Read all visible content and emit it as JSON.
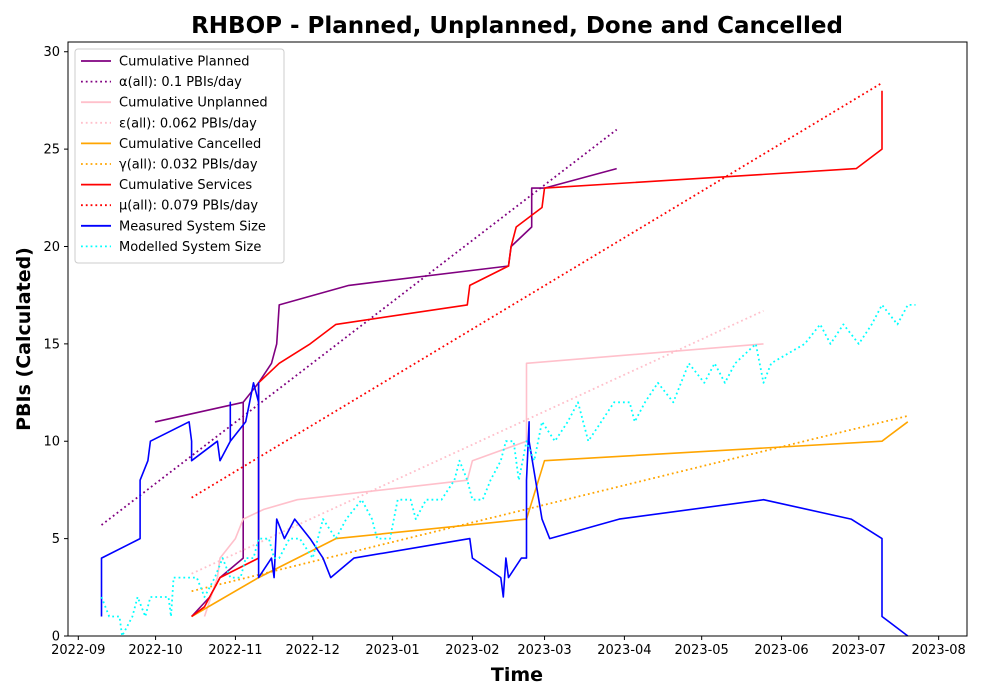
{
  "chart_data": {
    "type": "line",
    "title": "RHBOP - Planned, Unplanned, Done  and Cancelled",
    "xlabel": "Time",
    "ylabel": "PBIs (Calculated)",
    "x_axis_type": "date",
    "xlim": [
      "2022-08-28",
      "2023-08-12"
    ],
    "ylim": [
      0,
      30.5
    ],
    "x_ticks": [
      "2022-09",
      "2022-10",
      "2022-11",
      "2022-12",
      "2023-01",
      "2023-02",
      "2023-03",
      "2023-04",
      "2023-05",
      "2023-06",
      "2023-07",
      "2023-08"
    ],
    "x_tick_dates": [
      "2022-09-01",
      "2022-10-01",
      "2022-11-01",
      "2022-12-01",
      "2023-01-01",
      "2023-02-01",
      "2023-03-01",
      "2023-04-01",
      "2023-05-01",
      "2023-06-01",
      "2023-07-01",
      "2023-08-01"
    ],
    "y_ticks": [
      0,
      5,
      10,
      15,
      20,
      25,
      30
    ],
    "grid": false,
    "legend_position": "top-left",
    "series": [
      {
        "name": "Cumulative Planned",
        "color": "#800080",
        "style": "solid",
        "points": [
          [
            "2022-10-15",
            1
          ],
          [
            "2022-10-22",
            2
          ],
          [
            "2022-10-26",
            3
          ],
          [
            "2022-11-04",
            4
          ],
          [
            "2022-11-04",
            12
          ],
          [
            "2022-10-01",
            11
          ],
          [
            "2022-11-04",
            12
          ],
          [
            "2022-11-10",
            13
          ],
          [
            "2022-11-15",
            14
          ],
          [
            "2022-11-17",
            15
          ],
          [
            "2022-11-18",
            17
          ],
          [
            "2022-12-15",
            18
          ],
          [
            "2023-02-15",
            19
          ],
          [
            "2023-02-16",
            20
          ],
          [
            "2023-02-24",
            21
          ],
          [
            "2023-02-24",
            23
          ],
          [
            "2023-03-01",
            23
          ],
          [
            "2023-03-29",
            24
          ]
        ]
      },
      {
        "name": "α(all): 0.1 PBIs/day",
        "color": "#800080",
        "style": "dotted",
        "points": [
          [
            "2022-09-10",
            5.7
          ],
          [
            "2023-03-29",
            26
          ]
        ]
      },
      {
        "name": "Cumulative Unplanned",
        "color": "#ffc0cb",
        "style": "solid",
        "points": [
          [
            "2022-10-20",
            1
          ],
          [
            "2022-10-25",
            3
          ],
          [
            "2022-10-26",
            4
          ],
          [
            "2022-11-01",
            5
          ],
          [
            "2022-11-04",
            6
          ],
          [
            "2022-11-12",
            6.5
          ],
          [
            "2022-11-25",
            7
          ],
          [
            "2023-01-30",
            8
          ],
          [
            "2023-02-01",
            9
          ],
          [
            "2023-02-22",
            10
          ],
          [
            "2023-02-22",
            14
          ],
          [
            "2023-05-25",
            15
          ]
        ]
      },
      {
        "name": "ε(all): 0.062 PBIs/day",
        "color": "#ffc0cb",
        "style": "dotted",
        "points": [
          [
            "2022-10-15",
            3.2
          ],
          [
            "2023-05-25",
            16.7
          ]
        ]
      },
      {
        "name": "Cumulative Cancelled",
        "color": "#ffa500",
        "style": "solid",
        "points": [
          [
            "2022-10-15",
            1
          ],
          [
            "2022-11-10",
            3
          ],
          [
            "2022-11-25",
            4
          ],
          [
            "2022-12-10",
            5
          ],
          [
            "2023-02-22",
            6
          ],
          [
            "2023-03-01",
            9
          ],
          [
            "2023-07-10",
            10
          ],
          [
            "2023-07-20",
            11
          ]
        ]
      },
      {
        "name": "γ(all): 0.032 PBIs/day",
        "color": "#ffa500",
        "style": "dotted",
        "points": [
          [
            "2022-10-15",
            2.3
          ],
          [
            "2023-07-20",
            11.3
          ]
        ]
      },
      {
        "name": "Cumulative Services",
        "color": "#ff0000",
        "style": "solid",
        "points": [
          [
            "2022-10-15",
            1
          ],
          [
            "2022-10-20",
            1.5
          ],
          [
            "2022-10-26",
            3
          ],
          [
            "2022-11-10",
            4
          ],
          [
            "2022-11-10",
            13
          ],
          [
            "2022-11-18",
            14
          ],
          [
            "2022-11-30",
            15
          ],
          [
            "2022-12-10",
            16
          ],
          [
            "2023-01-30",
            17
          ],
          [
            "2023-01-31",
            18
          ],
          [
            "2023-02-15",
            19
          ],
          [
            "2023-02-16",
            20
          ],
          [
            "2023-02-18",
            21
          ],
          [
            "2023-02-28",
            22
          ],
          [
            "2023-03-01",
            23
          ],
          [
            "2023-06-30",
            24
          ],
          [
            "2023-07-10",
            25
          ],
          [
            "2023-07-10",
            28
          ]
        ]
      },
      {
        "name": "μ(all): 0.079 PBIs/day",
        "color": "#ff0000",
        "style": "dotted",
        "points": [
          [
            "2022-10-15",
            7.1
          ],
          [
            "2023-07-10",
            28.4
          ]
        ]
      },
      {
        "name": "Measured System Size",
        "color": "#0000ff",
        "style": "solid",
        "points": [
          [
            "2022-09-10",
            1
          ],
          [
            "2022-09-10",
            4
          ],
          [
            "2022-09-25",
            5
          ],
          [
            "2022-09-25",
            8
          ],
          [
            "2022-09-28",
            9
          ],
          [
            "2022-09-29",
            10
          ],
          [
            "2022-10-14",
            11
          ],
          [
            "2022-10-15",
            10
          ],
          [
            "2022-10-15",
            9
          ],
          [
            "2022-10-25",
            10
          ],
          [
            "2022-10-26",
            9
          ],
          [
            "2022-10-30",
            10
          ],
          [
            "2022-10-30",
            12
          ],
          [
            "2022-10-30",
            10
          ],
          [
            "2022-11-05",
            11
          ],
          [
            "2022-11-08",
            13
          ],
          [
            "2022-11-10",
            12
          ],
          [
            "2022-11-10",
            13
          ],
          [
            "2022-11-10",
            3
          ],
          [
            "2022-11-15",
            4
          ],
          [
            "2022-11-16",
            3
          ],
          [
            "2022-11-17",
            6
          ],
          [
            "2022-11-20",
            5
          ],
          [
            "2022-11-24",
            6
          ],
          [
            "2022-11-30",
            5
          ],
          [
            "2022-12-05",
            4
          ],
          [
            "2022-12-08",
            3
          ],
          [
            "2022-12-17",
            4
          ],
          [
            "2023-01-31",
            5
          ],
          [
            "2023-02-01",
            4
          ],
          [
            "2023-02-12",
            3
          ],
          [
            "2023-02-13",
            2
          ],
          [
            "2023-02-14",
            4
          ],
          [
            "2023-02-15",
            3
          ],
          [
            "2023-02-20",
            4
          ],
          [
            "2023-02-22",
            4
          ],
          [
            "2023-02-22",
            8
          ],
          [
            "2023-02-23",
            11
          ],
          [
            "2023-02-23",
            10
          ],
          [
            "2023-02-28",
            6
          ],
          [
            "2023-03-03",
            5
          ],
          [
            "2023-03-30",
            6
          ],
          [
            "2023-05-25",
            7
          ],
          [
            "2023-06-28",
            6
          ],
          [
            "2023-07-10",
            5
          ],
          [
            "2023-07-10",
            1
          ],
          [
            "2023-07-20",
            0
          ]
        ]
      },
      {
        "name": "Modelled System Size",
        "color": "#00ffff",
        "style": "dotted",
        "points": [
          [
            "2022-09-10",
            2
          ],
          [
            "2022-09-13",
            1
          ],
          [
            "2022-09-17",
            1
          ],
          [
            "2022-09-18",
            0
          ],
          [
            "2022-09-22",
            1
          ],
          [
            "2022-09-24",
            2
          ],
          [
            "2022-09-27",
            1
          ],
          [
            "2022-09-29",
            2
          ],
          [
            "2022-10-06",
            2
          ],
          [
            "2022-10-07",
            1
          ],
          [
            "2022-10-08",
            3
          ],
          [
            "2022-10-17",
            3
          ],
          [
            "2022-10-20",
            2
          ],
          [
            "2022-10-24",
            3
          ],
          [
            "2022-10-27",
            4
          ],
          [
            "2022-10-30",
            3
          ],
          [
            "2022-11-03",
            3
          ],
          [
            "2022-11-05",
            4
          ],
          [
            "2022-11-08",
            4
          ],
          [
            "2022-11-10",
            5
          ],
          [
            "2022-11-14",
            5
          ],
          [
            "2022-11-16",
            4
          ],
          [
            "2022-11-18",
            4
          ],
          [
            "2022-11-22",
            5
          ],
          [
            "2022-11-26",
            5
          ],
          [
            "2022-12-01",
            4
          ],
          [
            "2022-12-05",
            6
          ],
          [
            "2022-12-10",
            5
          ],
          [
            "2022-12-14",
            6
          ],
          [
            "2022-12-20",
            7
          ],
          [
            "2022-12-24",
            6
          ],
          [
            "2022-12-26",
            5
          ],
          [
            "2022-12-31",
            5
          ],
          [
            "2023-01-03",
            7
          ],
          [
            "2023-01-08",
            7
          ],
          [
            "2023-01-10",
            6
          ],
          [
            "2023-01-14",
            7
          ],
          [
            "2023-01-20",
            7
          ],
          [
            "2023-01-25",
            8
          ],
          [
            "2023-01-27",
            9
          ],
          [
            "2023-01-30",
            8
          ],
          [
            "2023-02-01",
            7
          ],
          [
            "2023-02-05",
            7
          ],
          [
            "2023-02-08",
            8
          ],
          [
            "2023-02-12",
            9
          ],
          [
            "2023-02-14",
            10
          ],
          [
            "2023-02-17",
            10
          ],
          [
            "2023-02-19",
            8
          ],
          [
            "2023-02-22",
            10
          ],
          [
            "2023-02-25",
            9
          ],
          [
            "2023-02-28",
            11
          ],
          [
            "2023-03-05",
            10
          ],
          [
            "2023-03-10",
            11
          ],
          [
            "2023-03-14",
            12
          ],
          [
            "2023-03-18",
            10
          ],
          [
            "2023-03-23",
            11
          ],
          [
            "2023-03-28",
            12
          ],
          [
            "2023-04-03",
            12
          ],
          [
            "2023-04-05",
            11
          ],
          [
            "2023-04-09",
            12
          ],
          [
            "2023-04-14",
            13
          ],
          [
            "2023-04-20",
            12
          ],
          [
            "2023-04-26",
            14
          ],
          [
            "2023-05-02",
            13
          ],
          [
            "2023-05-06",
            14
          ],
          [
            "2023-05-10",
            13
          ],
          [
            "2023-05-14",
            14
          ],
          [
            "2023-05-22",
            15
          ],
          [
            "2023-05-25",
            13
          ],
          [
            "2023-05-28",
            14
          ],
          [
            "2023-06-10",
            15
          ],
          [
            "2023-06-16",
            16
          ],
          [
            "2023-06-20",
            15
          ],
          [
            "2023-06-25",
            16
          ],
          [
            "2023-07-01",
            15
          ],
          [
            "2023-07-06",
            16
          ],
          [
            "2023-07-10",
            17
          ],
          [
            "2023-07-16",
            16
          ],
          [
            "2023-07-20",
            17
          ],
          [
            "2023-07-23",
            17
          ]
        ]
      }
    ]
  }
}
